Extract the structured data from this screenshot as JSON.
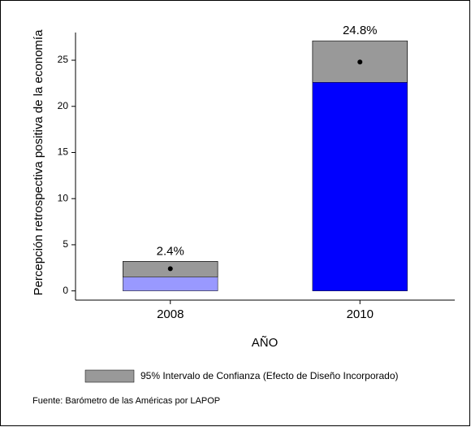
{
  "chart_data": {
    "type": "bar",
    "ylabel": "Percepción retrospectiva positiva de la economía",
    "xlabel": "AÑO",
    "categories": [
      "2008",
      "2010"
    ],
    "values": [
      2.4,
      24.8
    ],
    "value_labels": [
      "2.4%",
      "24.8%"
    ],
    "ci_lower": [
      1.5,
      22.6
    ],
    "ci_upper": [
      3.2,
      27.1
    ],
    "colors": [
      "#9999ff",
      "#0000ff"
    ],
    "ci_color": "#999999",
    "ci_legend": "95% Intervalo de Confianza  (Efecto de Diseño Incorporado)",
    "source": "Fuente: Barómetro de las Américas por LAPOP",
    "ylim": [
      -1,
      28
    ],
    "yticks": [
      0,
      5,
      10,
      15,
      20,
      25
    ]
  }
}
